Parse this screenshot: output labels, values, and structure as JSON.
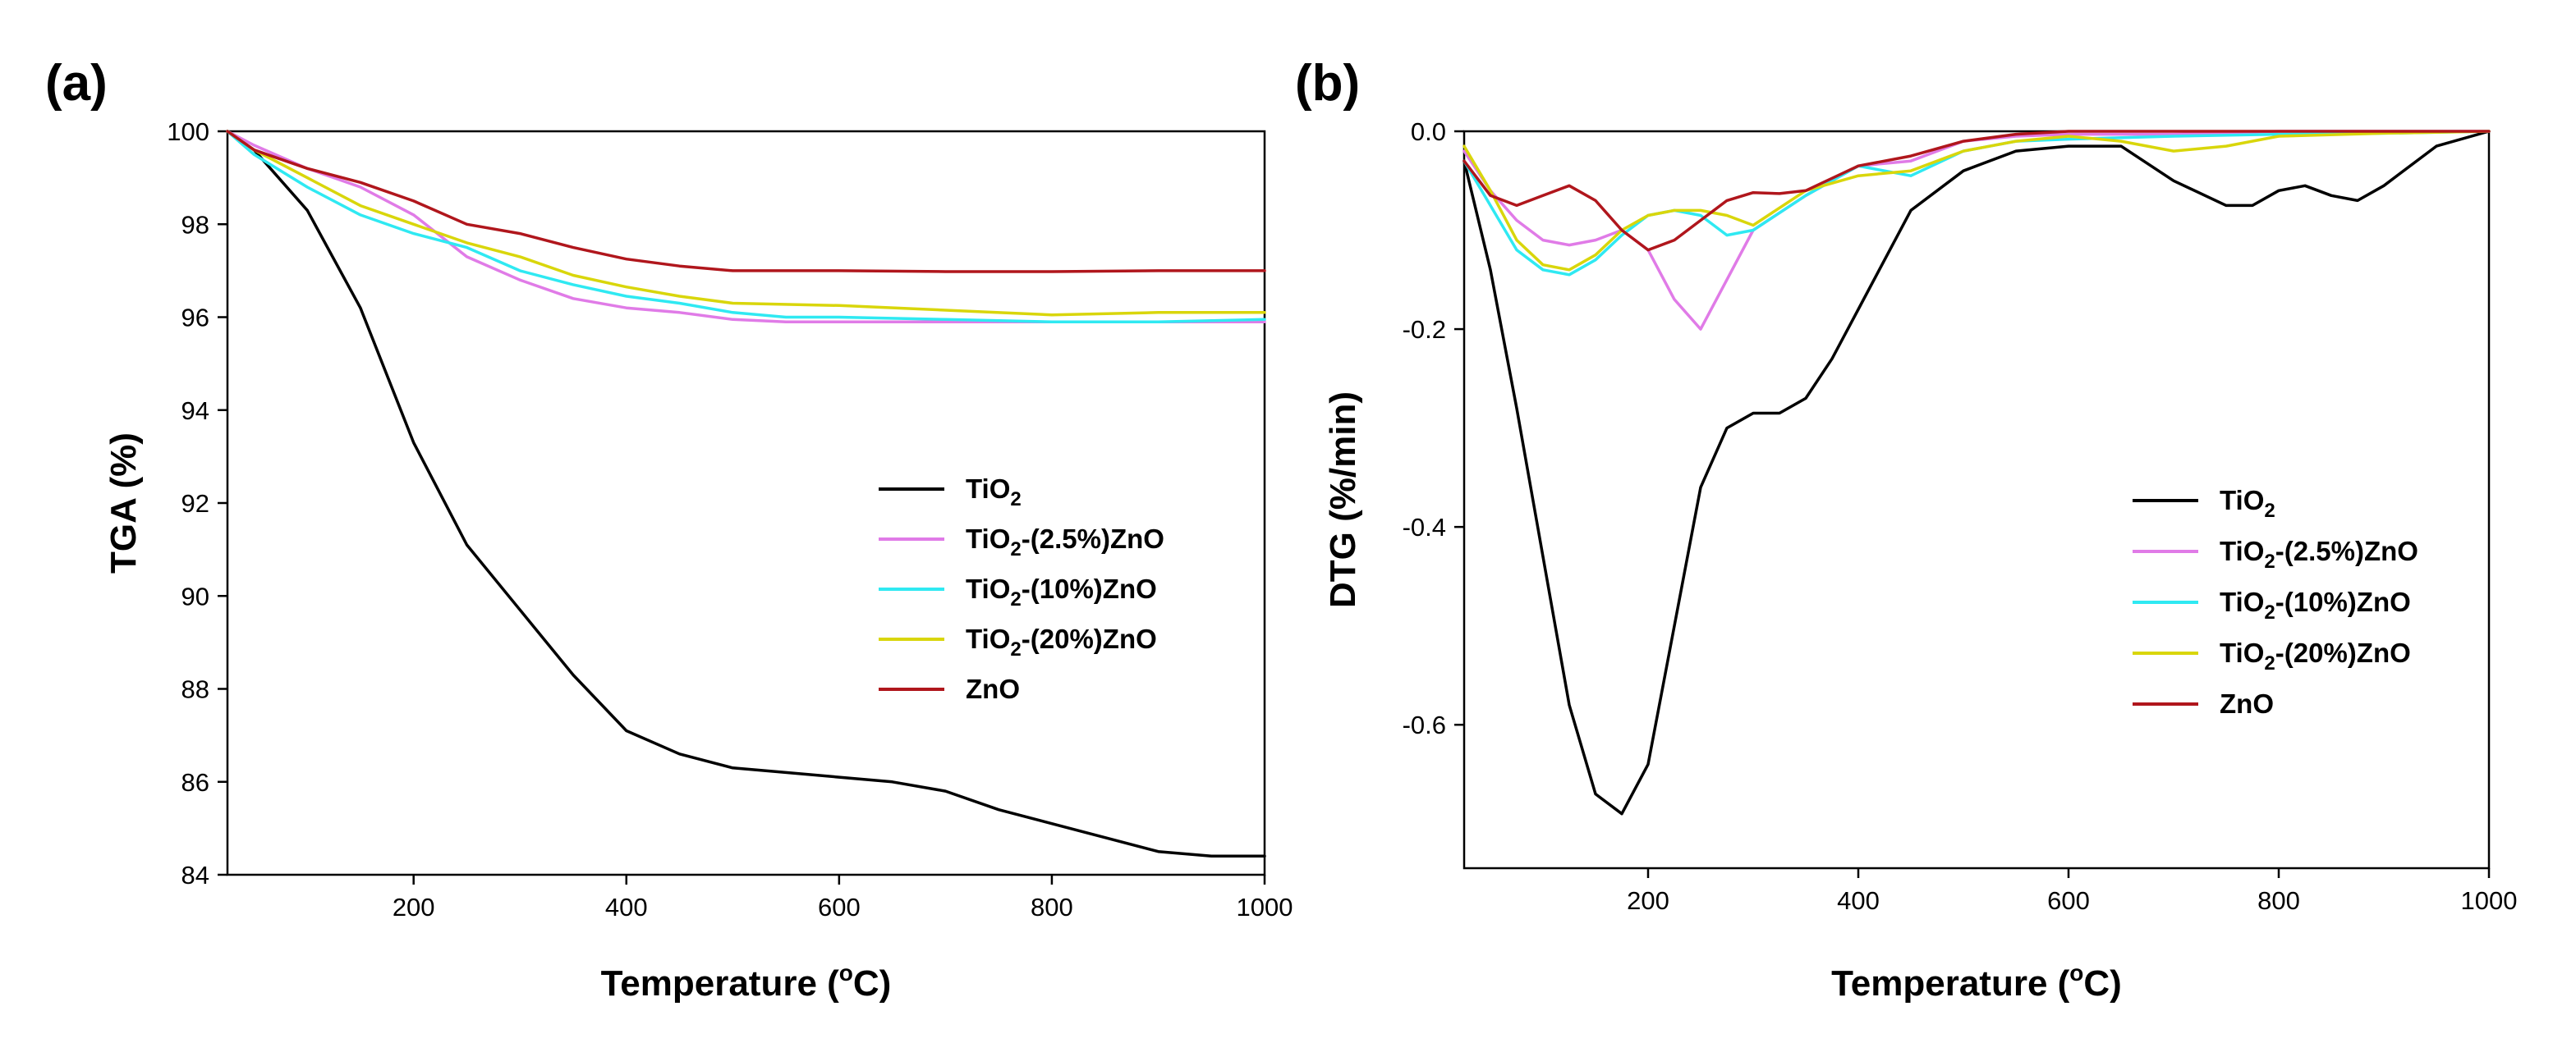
{
  "chart_data": [
    {
      "type": "line",
      "panel_label": "(a)",
      "xlabel": {
        "main": "Temperature (",
        "sup": "o",
        "tail": "C)"
      },
      "ylabel": "TGA (%)",
      "xlim": [
        25,
        1000
      ],
      "ylim": [
        84,
        100
      ],
      "xticks": [
        200,
        400,
        600,
        800,
        1000
      ],
      "xtick_labels": [
        "200",
        "400",
        "600",
        "800",
        "1000"
      ],
      "yticks": [
        84,
        86,
        88,
        90,
        92,
        94,
        96,
        98,
        100
      ],
      "ytick_labels": [
        "84",
        "86",
        "88",
        "90",
        "92",
        "94",
        "96",
        "98",
        "100"
      ],
      "legend_position": "center-right",
      "series": [
        {
          "name": "TiO2",
          "legend": {
            "main": "TiO",
            "sub": "2",
            "tail": ""
          },
          "color": "#000000",
          "x": [
            25,
            50,
            100,
            150,
            200,
            250,
            300,
            350,
            400,
            450,
            500,
            550,
            600,
            650,
            700,
            750,
            800,
            850,
            900,
            950,
            1000
          ],
          "y": [
            100,
            99.6,
            98.3,
            96.2,
            93.3,
            91.1,
            89.7,
            88.3,
            87.1,
            86.6,
            86.3,
            86.2,
            86.1,
            86.0,
            85.8,
            85.4,
            85.1,
            84.8,
            84.5,
            84.4,
            84.4
          ]
        },
        {
          "name": "TiO2-(2.5%)ZnO",
          "legend": {
            "main": "TiO",
            "sub": "2",
            "tail": "-(2.5%)ZnO"
          },
          "color": "#E07BE7",
          "x": [
            25,
            50,
            100,
            150,
            200,
            250,
            300,
            350,
            400,
            450,
            500,
            550,
            600,
            700,
            800,
            900,
            1000
          ],
          "y": [
            100,
            99.7,
            99.2,
            98.8,
            98.2,
            97.3,
            96.8,
            96.4,
            96.2,
            96.1,
            95.95,
            95.9,
            95.9,
            95.9,
            95.9,
            95.9,
            95.9
          ]
        },
        {
          "name": "TiO2-(10%)ZnO",
          "legend": {
            "main": "TiO",
            "sub": "2",
            "tail": "-(10%)ZnO"
          },
          "color": "#2FE9F2",
          "x": [
            25,
            50,
            100,
            150,
            200,
            250,
            300,
            350,
            400,
            450,
            500,
            550,
            600,
            700,
            800,
            900,
            1000
          ],
          "y": [
            100,
            99.5,
            98.8,
            98.2,
            97.8,
            97.5,
            97.0,
            96.7,
            96.45,
            96.3,
            96.1,
            96.0,
            96.0,
            95.95,
            95.9,
            95.9,
            95.95
          ]
        },
        {
          "name": "TiO2-(20%)ZnO",
          "legend": {
            "main": "TiO",
            "sub": "2",
            "tail": "-(20%)ZnO"
          },
          "color": "#D9D60B",
          "x": [
            25,
            50,
            100,
            150,
            200,
            250,
            300,
            350,
            400,
            450,
            500,
            600,
            700,
            800,
            900,
            1000
          ],
          "y": [
            100,
            99.6,
            99.0,
            98.4,
            98.0,
            97.6,
            97.3,
            96.9,
            96.65,
            96.45,
            96.3,
            96.25,
            96.15,
            96.05,
            96.1,
            96.1
          ]
        },
        {
          "name": "ZnO",
          "legend": {
            "main": "ZnO",
            "sub": "",
            "tail": ""
          },
          "color": "#B0161C",
          "x": [
            25,
            50,
            100,
            150,
            200,
            250,
            300,
            350,
            400,
            450,
            500,
            600,
            700,
            800,
            900,
            1000
          ],
          "y": [
            100,
            99.6,
            99.2,
            98.9,
            98.5,
            98.0,
            97.8,
            97.5,
            97.25,
            97.1,
            97.0,
            97.0,
            96.98,
            96.98,
            97.0,
            97.0
          ]
        }
      ]
    },
    {
      "type": "line",
      "panel_label": "(b)",
      "xlabel": {
        "main": "Temperature (",
        "sup": "o",
        "tail": "C)"
      },
      "ylabel": "DTG (%/min)",
      "xlim": [
        25,
        1000
      ],
      "ylim": [
        -0.745,
        0.0
      ],
      "xticks": [
        200,
        400,
        600,
        800,
        1000
      ],
      "xtick_labels": [
        "200",
        "400",
        "600",
        "800",
        "1000"
      ],
      "yticks": [
        -0.6,
        -0.4,
        -0.2,
        0.0
      ],
      "ytick_labels": [
        "-0.6",
        "-0.4",
        "-0.2",
        "0.0"
      ],
      "legend_position": "center-right",
      "series": [
        {
          "name": "TiO2",
          "legend": {
            "main": "TiO",
            "sub": "2",
            "tail": ""
          },
          "color": "#000000",
          "x": [
            25,
            50,
            75,
            100,
            125,
            150,
            175,
            200,
            225,
            250,
            275,
            300,
            325,
            350,
            375,
            400,
            450,
            500,
            550,
            600,
            650,
            700,
            750,
            775,
            800,
            825,
            850,
            875,
            900,
            950,
            1000
          ],
          "y": [
            -0.03,
            -0.14,
            -0.28,
            -0.43,
            -0.58,
            -0.67,
            -0.69,
            -0.64,
            -0.5,
            -0.36,
            -0.3,
            -0.285,
            -0.285,
            -0.27,
            -0.23,
            -0.18,
            -0.08,
            -0.04,
            -0.02,
            -0.015,
            -0.015,
            -0.05,
            -0.075,
            -0.075,
            -0.06,
            -0.055,
            -0.065,
            -0.07,
            -0.055,
            -0.015,
            0.0
          ]
        },
        {
          "name": "TiO2-(2.5%)ZnO",
          "legend": {
            "main": "TiO",
            "sub": "2",
            "tail": "-(2.5%)ZnO"
          },
          "color": "#E07BE7",
          "x": [
            25,
            50,
            75,
            100,
            125,
            150,
            175,
            200,
            225,
            250,
            275,
            300,
            350,
            400,
            450,
            500,
            550,
            600,
            700,
            800,
            900,
            1000
          ],
          "y": [
            -0.02,
            -0.06,
            -0.09,
            -0.11,
            -0.115,
            -0.11,
            -0.1,
            -0.12,
            -0.17,
            -0.2,
            -0.15,
            -0.1,
            -0.065,
            -0.035,
            -0.03,
            -0.01,
            -0.005,
            -0.003,
            -0.003,
            0.0,
            0.0,
            0.0
          ]
        },
        {
          "name": "TiO2-(10%)ZnO",
          "legend": {
            "main": "TiO",
            "sub": "2",
            "tail": "-(10%)ZnO"
          },
          "color": "#2FE9F2",
          "x": [
            25,
            50,
            75,
            100,
            125,
            150,
            175,
            200,
            225,
            250,
            275,
            300,
            350,
            400,
            450,
            500,
            550,
            600,
            700,
            800,
            900,
            1000
          ],
          "y": [
            -0.03,
            -0.075,
            -0.12,
            -0.14,
            -0.145,
            -0.13,
            -0.105,
            -0.085,
            -0.08,
            -0.085,
            -0.105,
            -0.1,
            -0.065,
            -0.035,
            -0.045,
            -0.02,
            -0.01,
            -0.008,
            -0.005,
            -0.003,
            -0.002,
            0.0
          ]
        },
        {
          "name": "TiO2-(20%)ZnO",
          "legend": {
            "main": "TiO",
            "sub": "2",
            "tail": "-(20%)ZnO"
          },
          "color": "#D9D60B",
          "x": [
            25,
            50,
            75,
            100,
            125,
            150,
            175,
            200,
            225,
            250,
            275,
            300,
            350,
            400,
            450,
            500,
            550,
            600,
            650,
            700,
            750,
            800,
            900,
            1000
          ],
          "y": [
            -0.015,
            -0.06,
            -0.11,
            -0.135,
            -0.14,
            -0.125,
            -0.1,
            -0.085,
            -0.08,
            -0.08,
            -0.085,
            -0.095,
            -0.06,
            -0.045,
            -0.04,
            -0.02,
            -0.01,
            -0.005,
            -0.01,
            -0.02,
            -0.015,
            -0.005,
            -0.002,
            0.0
          ]
        },
        {
          "name": "ZnO",
          "legend": {
            "main": "ZnO",
            "sub": "",
            "tail": ""
          },
          "color": "#B0161C",
          "x": [
            25,
            50,
            75,
            100,
            125,
            150,
            175,
            200,
            225,
            250,
            275,
            300,
            325,
            350,
            400,
            450,
            500,
            550,
            600,
            700,
            800,
            900,
            1000
          ],
          "y": [
            -0.03,
            -0.065,
            -0.075,
            -0.065,
            -0.055,
            -0.07,
            -0.1,
            -0.12,
            -0.11,
            -0.09,
            -0.07,
            -0.062,
            -0.063,
            -0.06,
            -0.035,
            -0.025,
            -0.01,
            -0.003,
            0.0,
            0.0,
            0.0,
            0.0,
            0.0
          ]
        }
      ]
    }
  ]
}
